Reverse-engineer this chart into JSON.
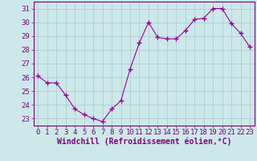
{
  "x": [
    0,
    1,
    2,
    3,
    4,
    5,
    6,
    7,
    8,
    9,
    10,
    11,
    12,
    13,
    14,
    15,
    16,
    17,
    18,
    19,
    20,
    21,
    22,
    23
  ],
  "y": [
    26.1,
    25.6,
    25.6,
    24.7,
    23.7,
    23.3,
    23.0,
    22.8,
    23.7,
    24.3,
    26.6,
    28.5,
    30.0,
    28.9,
    28.8,
    28.8,
    29.4,
    30.2,
    30.3,
    31.0,
    31.0,
    29.9,
    29.2,
    28.2
  ],
  "line_color": "#990099",
  "marker": "+",
  "marker_size": 4,
  "bg_color": "#cce8e8",
  "grid_color": "#aac8cc",
  "xlabel": "Windchill (Refroidissement éolien,°C)",
  "xlim": [
    -0.5,
    23.5
  ],
  "ylim": [
    22.5,
    31.5
  ],
  "yticks": [
    23,
    24,
    25,
    26,
    27,
    28,
    29,
    30,
    31
  ],
  "xticks": [
    0,
    1,
    2,
    3,
    4,
    5,
    6,
    7,
    8,
    9,
    10,
    11,
    12,
    13,
    14,
    15,
    16,
    17,
    18,
    19,
    20,
    21,
    22,
    23
  ],
  "axis_color": "#800080",
  "font_size": 6.5,
  "xlabel_fontsize": 7.0
}
